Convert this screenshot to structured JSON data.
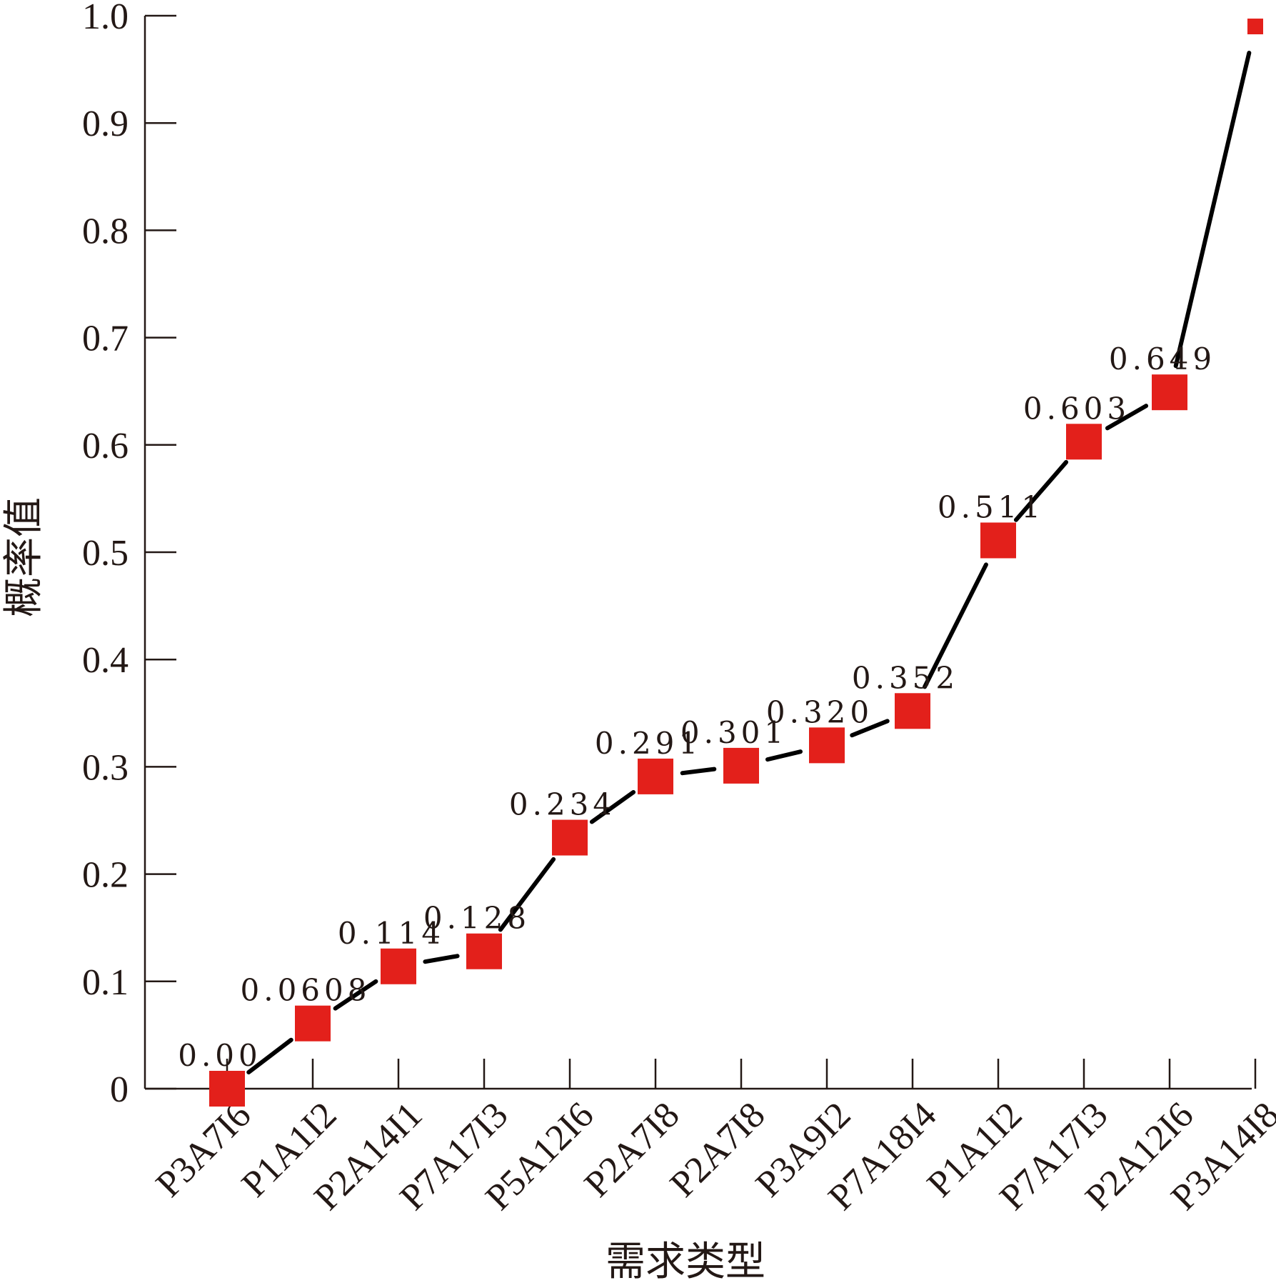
{
  "chart_data": {
    "type": "line",
    "title": "",
    "xlabel": "需求类型",
    "ylabel": "概率值",
    "ylim": [
      0,
      1.0
    ],
    "yticks": [
      "0",
      "0.1",
      "0.2",
      "0.3",
      "0.4",
      "0.5",
      "0.6",
      "0.7",
      "0.8",
      "0.9",
      "1.0"
    ],
    "categories": [
      "P3A7I6",
      "P1A1I2",
      "P2A14I1",
      "P7A17I3",
      "P5A12I6",
      "P2A7I8",
      "P2A7I8",
      "P3A9I2",
      "P7A18I4",
      "P1A1I2",
      "P7A17I3",
      "P2A12I6",
      "P3A14I8"
    ],
    "values": [
      0.0,
      0.0608,
      0.114,
      0.128,
      0.234,
      0.291,
      0.301,
      0.32,
      0.352,
      0.511,
      0.603,
      0.649,
      0.99
    ],
    "data_labels": [
      "0.00",
      "0.0608",
      "0.114",
      "0.128",
      "0.234",
      "0.291",
      "0.301",
      "0.320",
      "0.352",
      "0.511",
      "0.603",
      "0.649",
      ""
    ],
    "marker": "square",
    "marker_color": "#e3201b",
    "line_color": "#000000",
    "grid": false,
    "legend": "none"
  }
}
